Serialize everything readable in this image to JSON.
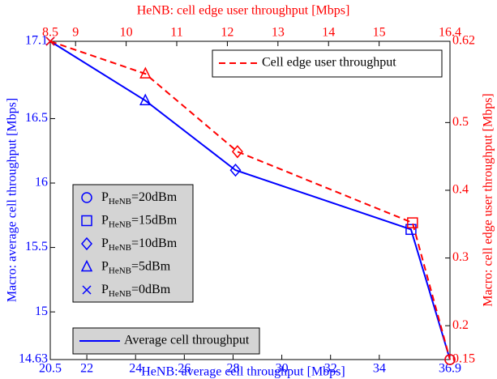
{
  "chart_data": {
    "type": "line",
    "x_label": "HeNB: average cell throughput [Mbps]",
    "x2_label": "HeNB: cell edge user throughput [Mbps]",
    "y_label": "Macro: average cell throughput [Mbps]",
    "y2_label": "Macro: cell edge user throughput [Mbps]",
    "xlim": [
      20.5,
      36.9
    ],
    "xticks": [
      20.5,
      22,
      24,
      26,
      28,
      30,
      32,
      34,
      36.9
    ],
    "x2lim": [
      8.5,
      16.4
    ],
    "x2ticks": [
      8.5,
      9,
      10,
      11,
      12,
      13,
      14,
      15,
      16.4
    ],
    "ylim": [
      14.63,
      17.1
    ],
    "yticks": [
      14.63,
      15,
      15.5,
      16,
      16.5,
      17.1
    ],
    "y2lim": [
      0.15,
      0.62
    ],
    "y2ticks": [
      0.15,
      0.2,
      0.3,
      0.4,
      0.5,
      0.62
    ],
    "markers": [
      "x",
      "triangle",
      "diamond",
      "square",
      "circle"
    ],
    "series": [
      {
        "name": "Average cell throughput",
        "color": "#0000ff",
        "dash": false,
        "axis": "y",
        "x": [
          20.5,
          24.4,
          28.1,
          35.3,
          36.9
        ],
        "values": [
          17.1,
          16.64,
          16.1,
          15.64,
          14.63
        ]
      },
      {
        "name": "Cell edge user throughput",
        "color": "#ff0000",
        "dash": true,
        "axis": "y2",
        "xaxis": "x2",
        "x": [
          8.5,
          10.38,
          12.2,
          15.66,
          16.4
        ],
        "values": [
          0.62,
          0.572,
          0.457,
          0.352,
          0.15
        ]
      }
    ],
    "marker_legend": [
      {
        "marker": "circle",
        "base": "P",
        "sub": "HeNB",
        "rest": "=20dBm"
      },
      {
        "marker": "square",
        "base": "P",
        "sub": "HeNB",
        "rest": "=15dBm"
      },
      {
        "marker": "diamond",
        "base": "P",
        "sub": "HeNB",
        "rest": "=10dBm"
      },
      {
        "marker": "triangle",
        "base": "P",
        "sub": "HeNB",
        "rest": "=5dBm"
      },
      {
        "marker": "x",
        "base": "P",
        "sub": "HeNB",
        "rest": "=0dBm"
      }
    ]
  }
}
